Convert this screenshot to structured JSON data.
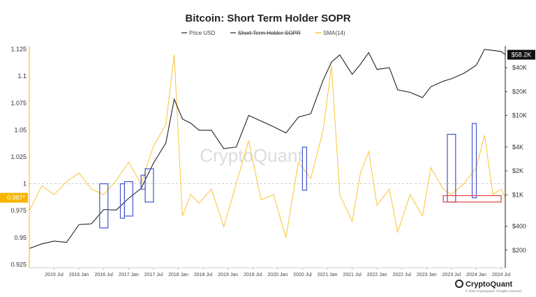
{
  "chart_data": {
    "type": "line",
    "title": "Bitcoin: Short Term Holder SOPR",
    "legend": [
      {
        "name": "Price USD",
        "color": "#222222",
        "style": "solid"
      },
      {
        "name": "Short Term Holder SOPR",
        "color": "#222222",
        "style": "strikethrough"
      },
      {
        "name": "SMA(14)",
        "color": "#f7b500",
        "style": "solid"
      }
    ],
    "legend_placement": "top-center",
    "y_left": {
      "range": [
        0.922,
        1.128
      ],
      "ticks": [
        "1.125",
        "1.1",
        "1.075",
        "1.05",
        "1.025",
        "1",
        "0.975",
        "0.95",
        "0.925"
      ],
      "tick_values": [
        1.125,
        1.1,
        1.075,
        1.05,
        1.025,
        1,
        0.975,
        0.95,
        0.925
      ],
      "current_label": "0.987*",
      "current_value": 0.987
    },
    "y_right": {
      "scale": "log",
      "ticks": [
        "$40K",
        "$20K",
        "$10K",
        "$4K",
        "$2K",
        "$1K",
        "$400",
        "$200"
      ],
      "tick_values": [
        40000,
        20000,
        10000,
        4000,
        2000,
        1000,
        400,
        200
      ],
      "current_label": "$58.2K",
      "current_value": 58200
    },
    "x_ticks": [
      "2015 Jul",
      "2016 Jan",
      "2016 Jul",
      "2017 Jan",
      "2017 Jul",
      "2018 Jan",
      "2018 Jul",
      "2019 Jan",
      "2019 Jul",
      "2020 Jan",
      "2020 Jul",
      "2021 Jan",
      "2021 Jul",
      "2022 Jan",
      "2022 Jul",
      "2023 Jan",
      "2023 Jul",
      "2024 Jan",
      "2024 Jul"
    ],
    "x_range": [
      "2015-01",
      "2024-08"
    ],
    "baseline": 1,
    "price_usd": {
      "name": "Price USD",
      "x": [
        "2015-01",
        "2015-04",
        "2015-07",
        "2015-10",
        "2016-01",
        "2016-04",
        "2016-07",
        "2016-10",
        "2017-01",
        "2017-04",
        "2017-07",
        "2017-10",
        "2017-12",
        "2018-02",
        "2018-04",
        "2018-06",
        "2018-09",
        "2018-12",
        "2019-03",
        "2019-06",
        "2019-09",
        "2019-12",
        "2020-03",
        "2020-06",
        "2020-09",
        "2020-12",
        "2021-02",
        "2021-04",
        "2021-07",
        "2021-09",
        "2021-11",
        "2022-01",
        "2022-04",
        "2022-06",
        "2022-09",
        "2022-12",
        "2023-02",
        "2023-05",
        "2023-07",
        "2023-10",
        "2024-01",
        "2024-03",
        "2024-05",
        "2024-07",
        "2024-08"
      ],
      "y": [
        210,
        240,
        260,
        250,
        420,
        430,
        650,
        640,
        900,
        1200,
        2500,
        4500,
        16000,
        9000,
        8000,
        6500,
        6500,
        3800,
        4000,
        10000,
        8500,
        7200,
        6000,
        9500,
        10500,
        28000,
        47000,
        58000,
        33000,
        44000,
        62000,
        38000,
        40000,
        21000,
        19500,
        16800,
        23000,
        27000,
        29000,
        34000,
        43000,
        68000,
        66000,
        64000,
        58200
      ]
    },
    "sma14": {
      "name": "SMA(14)",
      "x": [
        "2015-01",
        "2015-04",
        "2015-07",
        "2015-10",
        "2016-01",
        "2016-04",
        "2016-07",
        "2016-10",
        "2017-01",
        "2017-04",
        "2017-07",
        "2017-10",
        "2017-12",
        "2018-02",
        "2018-04",
        "2018-06",
        "2018-09",
        "2018-12",
        "2019-03",
        "2019-06",
        "2019-09",
        "2019-12",
        "2020-03",
        "2020-06",
        "2020-09",
        "2020-12",
        "2021-02",
        "2021-04",
        "2021-07",
        "2021-09",
        "2021-11",
        "2022-01",
        "2022-04",
        "2022-06",
        "2022-09",
        "2022-12",
        "2023-02",
        "2023-05",
        "2023-07",
        "2023-10",
        "2024-01",
        "2024-03",
        "2024-05",
        "2024-07",
        "2024-08"
      ],
      "y": [
        0.975,
        0.998,
        0.99,
        1.002,
        1.01,
        0.995,
        0.99,
        1.003,
        1.02,
        1.0,
        1.035,
        1.055,
        1.12,
        0.97,
        0.99,
        0.982,
        0.995,
        0.96,
        1.0,
        1.04,
        0.985,
        0.99,
        0.95,
        1.02,
        1.005,
        1.05,
        1.11,
        0.99,
        0.965,
        1.01,
        1.03,
        0.98,
        0.995,
        0.955,
        0.99,
        0.97,
        1.015,
        0.995,
        0.99,
        1.0,
        1.015,
        1.045,
        0.99,
        0.995,
        0.987
      ]
    },
    "annotations": [
      {
        "type": "box",
        "color": "#4455cc",
        "x": [
          "2016-06",
          "2016-08"
        ],
        "y": [
          0.959,
          1.0
        ]
      },
      {
        "type": "box",
        "color": "#4455cc",
        "x": [
          "2016-11",
          "2016-12"
        ],
        "y": [
          0.968,
          1.0
        ]
      },
      {
        "type": "box",
        "color": "#4455cc",
        "x": [
          "2016-12",
          "2017-02"
        ],
        "y": [
          0.97,
          1.002
        ]
      },
      {
        "type": "box",
        "color": "#4455cc",
        "x": [
          "2017-04",
          "2017-05"
        ],
        "y": [
          0.995,
          1.008
        ]
      },
      {
        "type": "box",
        "color": "#4455cc",
        "x": [
          "2017-05",
          "2017-07"
        ],
        "y": [
          0.983,
          1.014
        ]
      },
      {
        "type": "box",
        "color": "#4455cc",
        "x": [
          "2020-07",
          "2020-08"
        ],
        "y": [
          0.994,
          1.034
        ]
      },
      {
        "type": "box",
        "color": "#4455cc",
        "x": [
          "2023-06",
          "2023-08"
        ],
        "y": [
          0.983,
          1.046
        ]
      },
      {
        "type": "box",
        "color": "#4455cc",
        "x": [
          "2023-12",
          "2024-01"
        ],
        "y": [
          0.987,
          1.056
        ]
      },
      {
        "type": "box",
        "color": "#e04040",
        "x": [
          "2023-05",
          "2024-07"
        ],
        "y": [
          0.983,
          0.989
        ]
      }
    ]
  },
  "watermark": "CryptoQuant",
  "brand": {
    "name": "CryptoQuant",
    "copyright": "© 2024 CryptoQuant. All rights reserved."
  }
}
